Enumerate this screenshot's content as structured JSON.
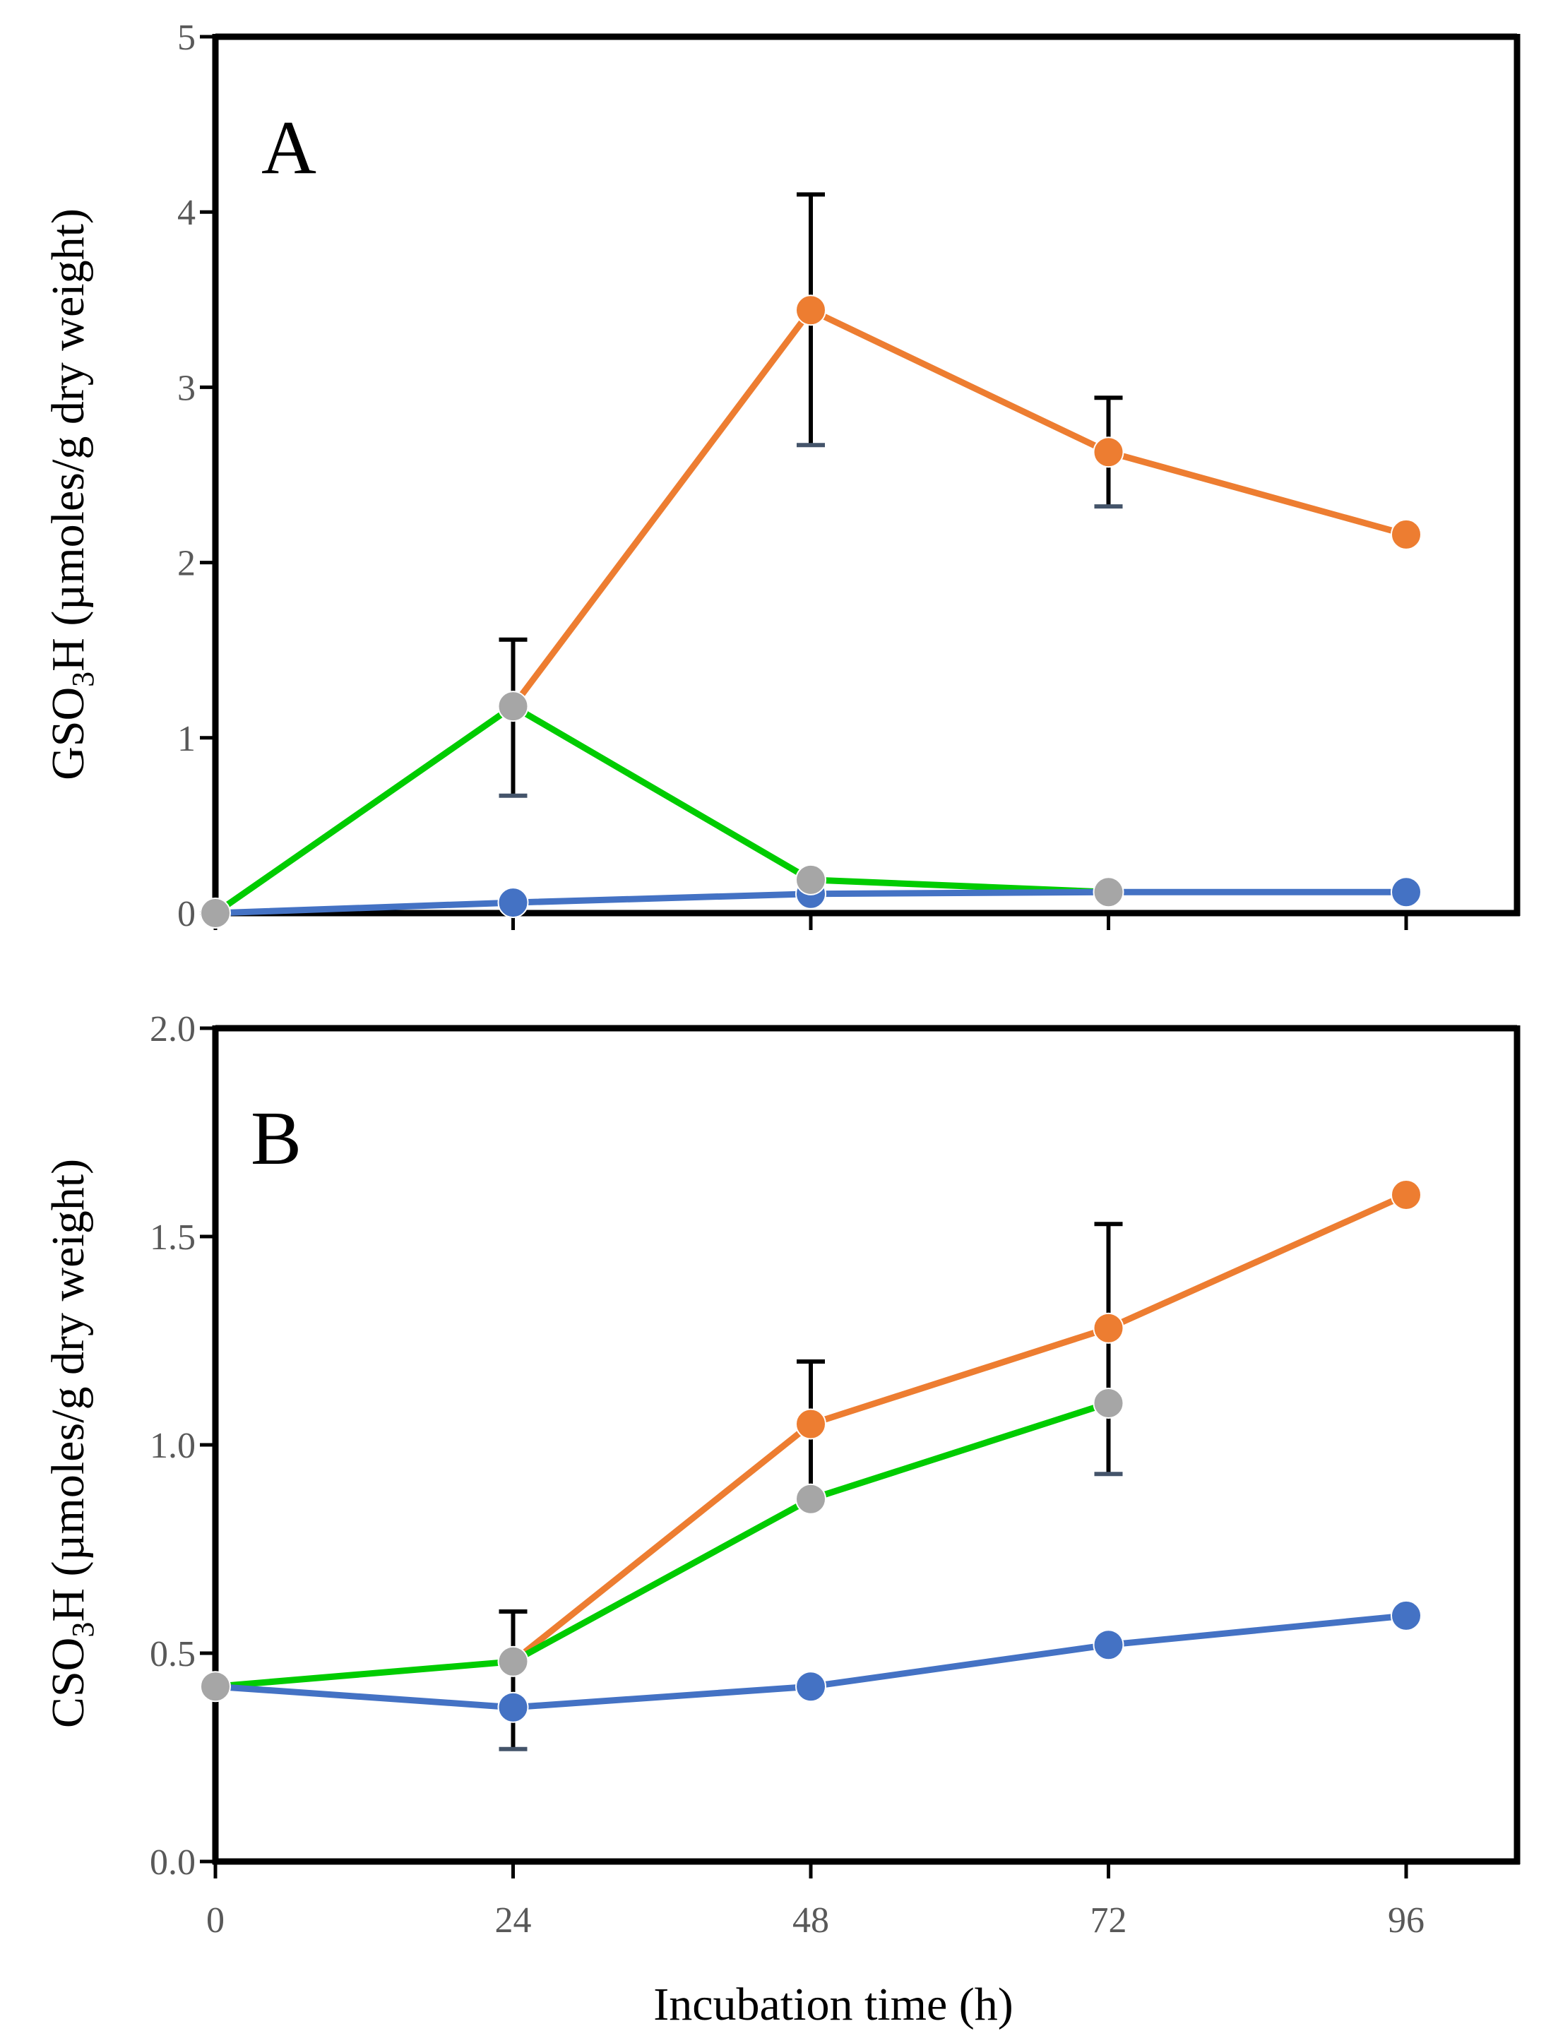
{
  "chart_data": [
    {
      "type": "line",
      "panel_label": "A",
      "ylabel_main": "GSO",
      "ylabel_sub": "3",
      "ylabel_rest": "H (µmoles/g dry weight)",
      "x": [
        0,
        24,
        48,
        72,
        96
      ],
      "xlim": [
        0,
        104
      ],
      "ylim": [
        0,
        5
      ],
      "yticks": [
        0,
        1,
        2,
        3,
        4,
        5
      ],
      "ytick_labels": [
        "0",
        "1",
        "2",
        "3",
        "4",
        "5"
      ],
      "grid": false,
      "series": [
        {
          "name": "orange",
          "color": "#ED7D31",
          "x": [
            24,
            48,
            72,
            96
          ],
          "values": [
            1.18,
            3.44,
            2.63,
            2.16
          ]
        },
        {
          "name": "green",
          "color": "#00CC00",
          "x": [
            0,
            24,
            48,
            72
          ],
          "values": [
            0.0,
            1.18,
            0.19,
            0.12
          ]
        },
        {
          "name": "blue",
          "color": "#4472C4",
          "x": [
            0,
            24,
            48,
            72,
            96
          ],
          "values": [
            0.0,
            0.06,
            0.11,
            0.12,
            0.12
          ]
        }
      ],
      "markers": [
        {
          "x": 24,
          "y": 0.06,
          "color": "#4472C4"
        },
        {
          "x": 48,
          "y": 0.11,
          "color": "#4472C4"
        },
        {
          "x": 96,
          "y": 0.12,
          "color": "#4472C4"
        },
        {
          "x": 48,
          "y": 3.44,
          "color": "#ED7D31"
        },
        {
          "x": 72,
          "y": 2.63,
          "color": "#ED7D31"
        },
        {
          "x": 96,
          "y": 2.16,
          "color": "#ED7D31"
        },
        {
          "x": 0,
          "y": 0.0,
          "color": "#A6A6A6"
        },
        {
          "x": 24,
          "y": 1.18,
          "color": "#A6A6A6"
        },
        {
          "x": 48,
          "y": 0.19,
          "color": "#A6A6A6"
        },
        {
          "x": 72,
          "y": 0.12,
          "color": "#A6A6A6"
        }
      ],
      "error_bars": [
        {
          "x": 24,
          "low": 0.67,
          "high": 1.56
        },
        {
          "x": 48,
          "low": 2.67,
          "high": 4.1
        },
        {
          "x": 72,
          "low": 2.32,
          "high": 2.94
        }
      ]
    },
    {
      "type": "line",
      "panel_label": "B",
      "ylabel_main": "CSO",
      "ylabel_sub": "3",
      "ylabel_rest": "H (µmoles/g dry weight)",
      "x": [
        0,
        24,
        48,
        72,
        96
      ],
      "xlim": [
        0,
        104
      ],
      "ylim": [
        0,
        2
      ],
      "yticks": [
        0,
        0.5,
        1,
        1.5,
        2
      ],
      "ytick_labels": [
        "0.0",
        "0.5",
        "1.0",
        "1.5",
        "2.0"
      ],
      "grid": false,
      "series": [
        {
          "name": "orange",
          "color": "#ED7D31",
          "x": [
            24,
            48,
            72,
            96
          ],
          "values": [
            0.48,
            1.05,
            1.28,
            1.6
          ]
        },
        {
          "name": "green",
          "color": "#00CC00",
          "x": [
            0,
            24,
            48,
            72
          ],
          "values": [
            0.42,
            0.48,
            0.87,
            1.1
          ]
        },
        {
          "name": "blue",
          "color": "#4472C4",
          "x": [
            0,
            24,
            48,
            72,
            96
          ],
          "values": [
            0.42,
            0.37,
            0.42,
            0.52,
            0.59
          ]
        }
      ],
      "markers": [
        {
          "x": 24,
          "y": 0.37,
          "color": "#4472C4"
        },
        {
          "x": 48,
          "y": 0.42,
          "color": "#4472C4"
        },
        {
          "x": 72,
          "y": 0.52,
          "color": "#4472C4"
        },
        {
          "x": 96,
          "y": 0.59,
          "color": "#4472C4"
        },
        {
          "x": 48,
          "y": 1.05,
          "color": "#ED7D31"
        },
        {
          "x": 72,
          "y": 1.28,
          "color": "#ED7D31"
        },
        {
          "x": 96,
          "y": 1.6,
          "color": "#ED7D31"
        },
        {
          "x": 0,
          "y": 0.42,
          "color": "#A6A6A6"
        },
        {
          "x": 24,
          "y": 0.48,
          "color": "#A6A6A6"
        },
        {
          "x": 48,
          "y": 0.87,
          "color": "#A6A6A6"
        },
        {
          "x": 72,
          "y": 1.1,
          "color": "#A6A6A6"
        }
      ],
      "error_bars": [
        {
          "x": 24,
          "low": 0.27,
          "high": 0.6
        },
        {
          "x": 48,
          "low": 0.87,
          "high": 1.2
        },
        {
          "x": 72,
          "low": 0.93,
          "high": 1.53
        }
      ]
    }
  ],
  "x_axis": {
    "tick_labels": [
      "0",
      "24",
      "48",
      "72",
      "96"
    ],
    "title": "Incubation time (h)"
  }
}
